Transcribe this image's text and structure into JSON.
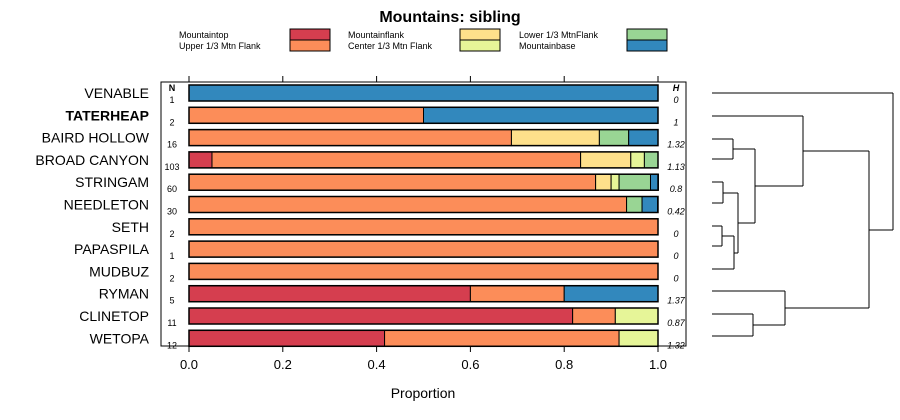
{
  "chart_data": {
    "type": "bar",
    "orientation": "horizontal",
    "stacked": true,
    "title": "Mountains: sibling",
    "xlabel": "Proportion",
    "xlim": [
      0,
      1
    ],
    "xticks": [
      "0.0",
      "0.2",
      "0.4",
      "0.6",
      "0.8",
      "1.0"
    ],
    "xtick_values": [
      0,
      0.2,
      0.4,
      0.6,
      0.8,
      1.0
    ],
    "n_header": "N",
    "h_header": "H",
    "legend_position": "top",
    "legend": [
      {
        "name": "Mountaintop",
        "color": "#d53e4f"
      },
      {
        "name": "Upper 1/3 Mtn Flank",
        "color": "#fc8d59"
      },
      {
        "name": "Mountainflank",
        "color": "#fee08b"
      },
      {
        "name": "Center 1/3 Mtn Flank",
        "color": "#e6f598"
      },
      {
        "name": "Lower 1/3 MtnFlank",
        "color": "#99d594"
      },
      {
        "name": "Mountainbase",
        "color": "#3288bd"
      }
    ],
    "categories": [
      {
        "label": "VENABLE",
        "bold": false,
        "n": "1",
        "h": "0",
        "values": [
          0,
          0,
          0,
          0,
          0,
          1.0
        ]
      },
      {
        "label": "TATERHEAP",
        "bold": true,
        "n": "2",
        "h": "1",
        "values": [
          0,
          0.5,
          0,
          0,
          0,
          0.5
        ]
      },
      {
        "label": "BAIRD HOLLOW",
        "bold": false,
        "n": "16",
        "h": "1.32",
        "values": [
          0,
          0.6875,
          0.1875,
          0,
          0.0625,
          0.0625
        ]
      },
      {
        "label": "BROAD CANYON",
        "bold": false,
        "n": "103",
        "h": "1.13",
        "values": [
          0.049,
          0.786,
          0.107,
          0.029,
          0.029,
          0
        ]
      },
      {
        "label": "STRINGAM",
        "bold": false,
        "n": "60",
        "h": "0.8",
        "values": [
          0,
          0.867,
          0.033,
          0.017,
          0.067,
          0.017
        ]
      },
      {
        "label": "NEEDLETON",
        "bold": false,
        "n": "30",
        "h": "0.42",
        "values": [
          0,
          0.933,
          0,
          0,
          0.033,
          0.033
        ]
      },
      {
        "label": "SETH",
        "bold": false,
        "n": "2",
        "h": "0",
        "values": [
          0,
          1.0,
          0,
          0,
          0,
          0
        ]
      },
      {
        "label": "PAPASPILA",
        "bold": false,
        "n": "1",
        "h": "0",
        "values": [
          0,
          1.0,
          0,
          0,
          0,
          0
        ]
      },
      {
        "label": "MUDBUZ",
        "bold": false,
        "n": "2",
        "h": "0",
        "values": [
          0,
          1.0,
          0,
          0,
          0,
          0
        ]
      },
      {
        "label": "RYMAN",
        "bold": false,
        "n": "5",
        "h": "1.37",
        "values": [
          0.6,
          0.2,
          0,
          0,
          0,
          0.2
        ]
      },
      {
        "label": "CLINETOP",
        "bold": false,
        "n": "11",
        "h": "0.87",
        "values": [
          0.818,
          0.091,
          0,
          0.091,
          0,
          0
        ]
      },
      {
        "label": "WETOPA",
        "bold": false,
        "n": "12",
        "h": "1.32",
        "values": [
          0.417,
          0.5,
          0,
          0.083,
          0,
          0
        ]
      }
    ]
  }
}
